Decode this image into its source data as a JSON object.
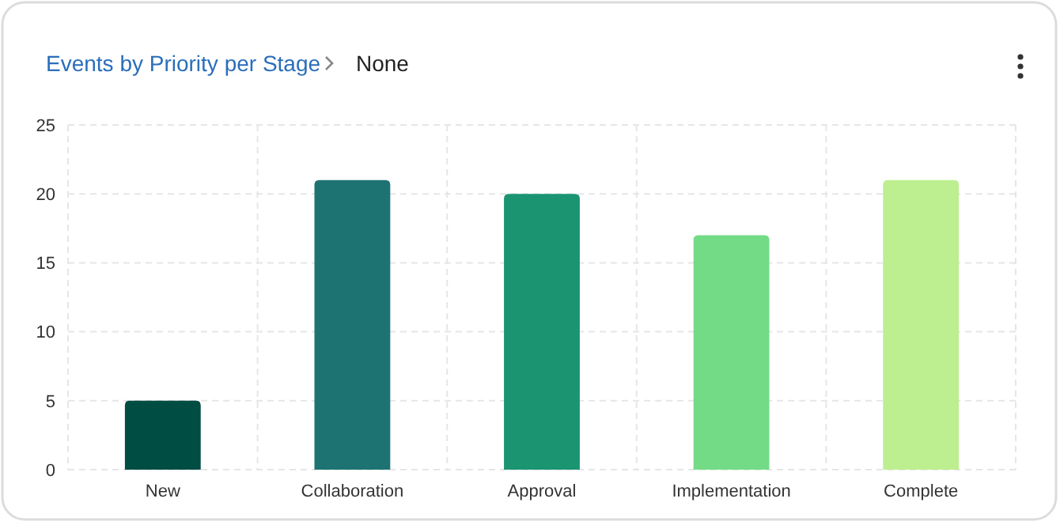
{
  "chart_data": {
    "type": "bar",
    "title": "Events by Priority per Stage",
    "subtitle": "None",
    "categories": [
      "New",
      "Collaboration",
      "Approval",
      "Implementation",
      "Complete"
    ],
    "values": [
      5,
      21,
      20,
      17,
      21
    ],
    "colors": [
      "#004d43",
      "#1d7372",
      "#1b9471",
      "#73db86",
      "#bdee90"
    ],
    "ylim": [
      0,
      25
    ],
    "yticks": [
      0,
      5,
      10,
      15,
      20,
      25
    ],
    "grid": true
  }
}
